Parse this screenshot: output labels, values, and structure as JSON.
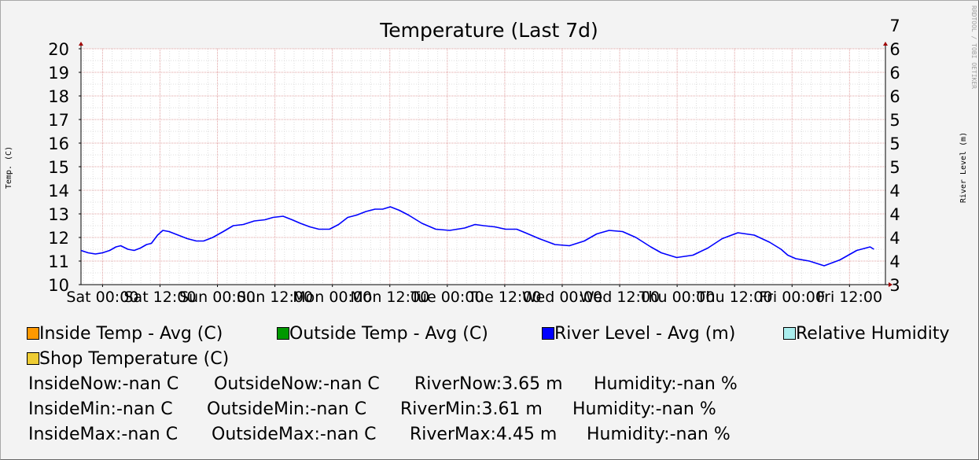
{
  "chart_data": {
    "type": "line",
    "title": "Temperature (Last 7d)",
    "ylabel": "Temp. (C)",
    "ylabel_right": "River Level (m)",
    "watermark": "RRDTOOL / TOBI OETIKER",
    "ylim": [
      10,
      20
    ],
    "yticks": [
      "10",
      "11",
      "12",
      "13",
      "14",
      "15",
      "16",
      "17",
      "18",
      "19",
      "20"
    ],
    "yticks_right": [
      "3",
      "4",
      "4",
      "4",
      "4",
      "5",
      "5",
      "5",
      "6",
      "6",
      "6",
      "7"
    ],
    "xticks": [
      "Sat 00:00",
      "Sat 12:00",
      "Sun 00:00",
      "Sun 12:00",
      "Mon 00:00",
      "Mon 12:00",
      "Tue 00:00",
      "Tue 12:00",
      "Wed 00:00",
      "Wed 12:00",
      "Thu 00:00",
      "Thu 12:00",
      "Fri 00:00",
      "Fri 12:00"
    ],
    "xticks_hours": [
      0,
      12,
      24,
      36,
      48,
      60,
      72,
      84,
      96,
      108,
      120,
      132,
      144,
      156
    ],
    "xlim_hours": [
      -4.5,
      163.5
    ],
    "grid": true,
    "series": [
      {
        "name": "River Level - Avg (m)",
        "color": "#0000ff",
        "x_hours": [
          -4.5,
          -3.0,
          -1.5,
          0,
          1.5,
          2.8,
          3.8,
          5.3,
          6.6,
          7.9,
          9.2,
          10.2,
          11.5,
          12.6,
          13.9,
          15.8,
          17.7,
          19.6,
          21.1,
          23.0,
          25.2,
          27.3,
          29.4,
          31.7,
          33.9,
          35.6,
          37.7,
          39.6,
          41.3,
          43.3,
          45.2,
          47.4,
          49.3,
          51.2,
          53.1,
          55.0,
          56.9,
          58.5,
          60.1,
          62.0,
          63.9,
          66.7,
          69.6,
          72.5,
          75.6,
          77.8,
          79.6,
          81.9,
          84.2,
          86.5,
          88.3,
          91.2,
          94.5,
          97.5,
          100.6,
          103.2,
          105.8,
          108.6,
          111.4,
          114.5,
          116.7,
          119.9,
          123.3,
          126.4,
          129.4,
          132.7,
          136.1,
          139.3,
          141.7,
          143.1,
          144.8,
          147.6,
          150.7,
          154.0,
          157.5,
          160.3,
          161.1
        ],
        "y": [
          11.45,
          11.35,
          11.3,
          11.35,
          11.45,
          11.6,
          11.65,
          11.5,
          11.45,
          11.55,
          11.7,
          11.75,
          12.1,
          12.3,
          12.25,
          12.1,
          11.95,
          11.85,
          11.85,
          12.0,
          12.25,
          12.5,
          12.55,
          12.7,
          12.75,
          12.85,
          12.9,
          12.75,
          12.6,
          12.45,
          12.35,
          12.35,
          12.55,
          12.85,
          12.95,
          13.1,
          13.2,
          13.2,
          13.3,
          13.15,
          12.95,
          12.6,
          12.35,
          12.3,
          12.4,
          12.55,
          12.5,
          12.45,
          12.35,
          12.35,
          12.2,
          11.95,
          11.7,
          11.65,
          11.85,
          12.15,
          12.3,
          12.25,
          12.0,
          11.6,
          11.35,
          11.15,
          11.25,
          11.55,
          11.95,
          12.2,
          12.1,
          11.8,
          11.5,
          11.25,
          11.1,
          11.0,
          10.8,
          11.05,
          11.45,
          11.6,
          11.5
        ]
      }
    ],
    "legend": [
      {
        "name": "Inside Temp - Avg (C)",
        "color": "#ff9900"
      },
      {
        "name": "Outside Temp - Avg (C)",
        "color": "#009900"
      },
      {
        "name": "River Level - Avg (m)",
        "color": "#0000ff"
      },
      {
        "name": "Relative Humidity",
        "color": "#aaeeee"
      },
      {
        "name": "Shop Temperature (C)",
        "color": "#eecc33"
      }
    ],
    "stats": [
      [
        "InsideNow:-nan C",
        "OutsideNow:-nan C",
        "RiverNow:3.65 m",
        "Humidity:-nan %"
      ],
      [
        "InsideMin:-nan C",
        "OutsideMin:-nan C",
        "RiverMin:3.61 m",
        "Humidity:-nan %"
      ],
      [
        "InsideMax:-nan C",
        "OutsideMax:-nan C",
        "RiverMax:4.45 m",
        "Humidity:-nan %"
      ]
    ]
  }
}
